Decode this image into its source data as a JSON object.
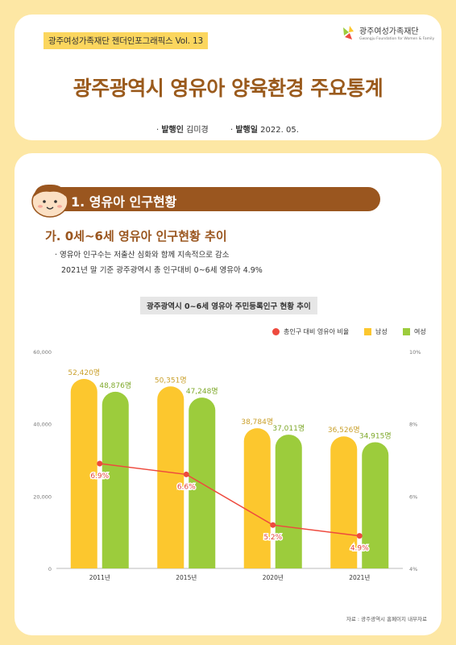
{
  "header": {
    "vol_label": "광주여성가족재단 젠더인포그래픽스 Vol. 13",
    "logo_text": "광주여성가족재단",
    "logo_sub": "Gwangju Foundation for Women & Family",
    "title": "광주광역시 영유아 양육환경 주요통계",
    "publisher_label": "발행인",
    "publisher": "김미경",
    "date_label": "발행일",
    "date": "2022. 05."
  },
  "section": {
    "title": "1. 영유아 인구현황",
    "subtitle": "가. 0세~6세 영유아 인구현황 추이",
    "bullet1": "영유아 인구수는 저출산 심화와 함께 지속적으로 감소",
    "bullet2": "2021년 말 기준 광주광역시 총 인구대비 0~6세 영유아 4.9%"
  },
  "chart_data": {
    "type": "bar",
    "title": "광주광역시 0~6세 영유아 주민등록인구 현황 추이",
    "categories": [
      "2011년",
      "2015년",
      "2020년",
      "2021년"
    ],
    "series": [
      {
        "name": "남성",
        "type": "bar",
        "color": "#fcc72e",
        "values": [
          52420,
          50351,
          38784,
          36526
        ],
        "labels": [
          "52,420명",
          "50,351명",
          "38,784명",
          "36,526명"
        ]
      },
      {
        "name": "여성",
        "type": "bar",
        "color": "#9ccc3c",
        "values": [
          48876,
          47248,
          37011,
          34915
        ],
        "labels": [
          "48,876명",
          "47,248명",
          "37,011명",
          "34,915명"
        ]
      },
      {
        "name": "총인구 대비 영유아 비율",
        "type": "line",
        "axis": "right",
        "color": "#ee4a3e",
        "values": [
          6.9,
          6.6,
          5.2,
          4.9
        ],
        "labels": [
          "6.9%",
          "6.6%",
          "5.2%",
          "4.9%"
        ]
      }
    ],
    "ylim": [
      0,
      60000
    ],
    "y_ticks": [
      "0",
      "20,000",
      "40,000",
      "60,000"
    ],
    "y2lim": [
      4,
      10
    ],
    "y2_ticks": [
      "4%",
      "6%",
      "8%",
      "10%"
    ],
    "legend": "top-right",
    "grid": false
  },
  "footer": {
    "source": "자료 : 광주광역시 홈페이지 내부자료"
  }
}
